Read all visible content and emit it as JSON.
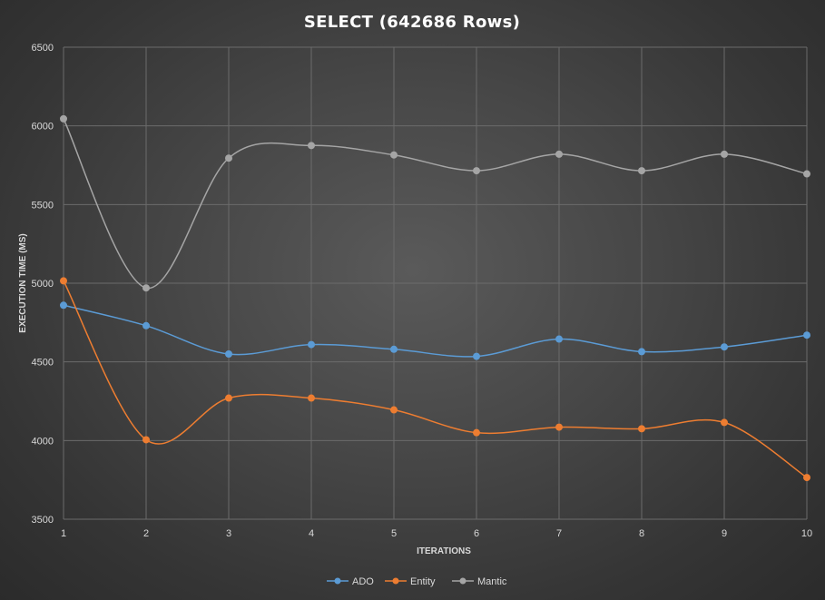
{
  "chart_data": {
    "type": "line",
    "title": "SELECT  (642686 Rows)",
    "xlabel": "ITERATIONS",
    "ylabel": "EXECUTION TIME  (MS)",
    "categories": [
      "1",
      "2",
      "3",
      "4",
      "5",
      "6",
      "7",
      "8",
      "9",
      "10"
    ],
    "ylim": [
      3500,
      6500
    ],
    "yticks": [
      "3500",
      "4000",
      "4500",
      "5000",
      "5500",
      "6000",
      "6500"
    ],
    "grid": true,
    "smooth": true,
    "legend_position": "bottom",
    "series": [
      {
        "name": "ADO",
        "color": "#5b9bd5",
        "values": [
          4860,
          4730,
          4550,
          4610,
          4580,
          4535,
          4645,
          4565,
          4595,
          4670
        ]
      },
      {
        "name": "Entity",
        "color": "#ed7d31",
        "values": [
          5015,
          4005,
          4270,
          4270,
          4195,
          4050,
          4085,
          4075,
          4115,
          3765
        ]
      },
      {
        "name": "Mantic",
        "color": "#a5a5a5",
        "values": [
          6045,
          4970,
          5795,
          5875,
          5815,
          5715,
          5820,
          5715,
          5820,
          5695
        ]
      }
    ]
  }
}
